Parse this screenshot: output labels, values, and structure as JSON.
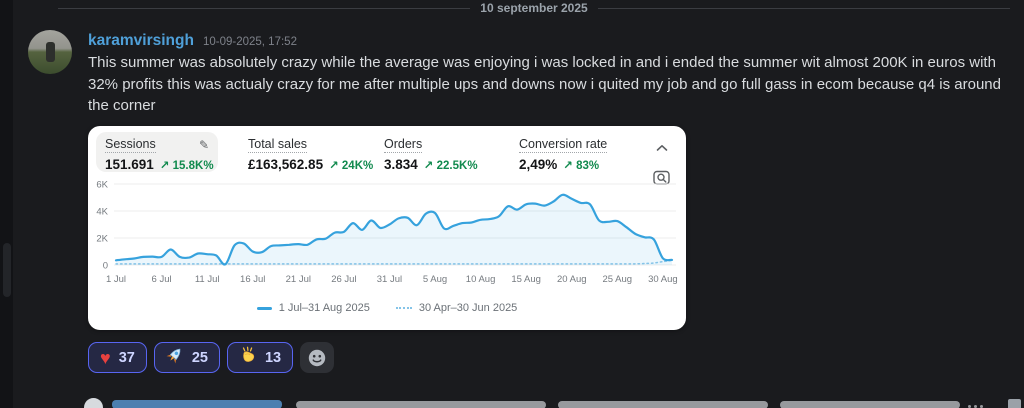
{
  "date_divider": "10 september 2025",
  "message": {
    "username": "karamvirsingh",
    "timestamp": "10-09-2025, 17:52",
    "text": "This summer was absolutely crazy while the average was enjoying i was locked in and i ended the summer wit almost 200K in euros with 32% profits this was actualy crazy for me after multiple ups and downs now i quited my job and go full gass in ecom because q4 is around the corner"
  },
  "dashboard": {
    "metrics": [
      {
        "label": "Sessions",
        "value": "151.691",
        "delta": "↗ 15.8K%",
        "selected": true
      },
      {
        "label": "Total sales",
        "value": "£163,562.85",
        "delta": "↗ 24K%",
        "selected": false
      },
      {
        "label": "Orders",
        "value": "3.834",
        "delta": "↗ 22.5K%",
        "selected": false
      },
      {
        "label": "Conversion rate",
        "value": "2,49%",
        "delta": "↗ 83%",
        "selected": false
      }
    ],
    "icons": {
      "edit": "✎",
      "chevron_up": "chevron-up",
      "zoom_chart": "magnifier-over-chart"
    }
  },
  "chart_data": {
    "type": "line",
    "title": "Sessions over time (area line chart)",
    "xlabel": "",
    "ylabel": "",
    "ylim": [
      0,
      6200
    ],
    "grid": true,
    "legend_position": "bottom",
    "y_ticks": [
      {
        "v": 0,
        "label": "0"
      },
      {
        "v": 2000,
        "label": "2K"
      },
      {
        "v": 4000,
        "label": "4K"
      },
      {
        "v": 6000,
        "label": "6K"
      }
    ],
    "x_ticks": [
      {
        "day": 0,
        "label": "1 Jul"
      },
      {
        "day": 5,
        "label": "6 Jul"
      },
      {
        "day": 10,
        "label": "11 Jul"
      },
      {
        "day": 15,
        "label": "16 Jul"
      },
      {
        "day": 20,
        "label": "21 Jul"
      },
      {
        "day": 25,
        "label": "26 Jul"
      },
      {
        "day": 30,
        "label": "31 Jul"
      },
      {
        "day": 35,
        "label": "5 Aug"
      },
      {
        "day": 40,
        "label": "10 Aug"
      },
      {
        "day": 45,
        "label": "15 Aug"
      },
      {
        "day": 50,
        "label": "20 Aug"
      },
      {
        "day": 55,
        "label": "25 Aug"
      },
      {
        "day": 60,
        "label": "30 Aug"
      }
    ],
    "series": [
      {
        "name": "1 Jul–31 Aug 2025",
        "style": "solid",
        "color": "#36a2dd",
        "fill": "rgba(54,162,221,0.10)",
        "values": [
          350,
          420,
          480,
          600,
          620,
          600,
          1150,
          600,
          550,
          850,
          800,
          700,
          50,
          1450,
          1600,
          1000,
          950,
          1400,
          1450,
          1500,
          1550,
          1500,
          1900,
          1950,
          2400,
          2450,
          3100,
          2600,
          3300,
          2750,
          3000,
          3450,
          3500,
          2950,
          3800,
          3850,
          2700,
          2900,
          3100,
          3150,
          3350,
          3400,
          3600,
          4350,
          4100,
          4500,
          4550,
          4400,
          4700,
          5200,
          4900,
          4600,
          4500,
          3300,
          3200,
          3250,
          2800,
          2300,
          2050,
          1900,
          500,
          380
        ]
      },
      {
        "name": "30 Apr–30 Jun 2025",
        "style": "dotted",
        "color": "#85c4e8",
        "values": [
          80,
          80,
          80,
          80,
          80,
          80,
          80,
          80,
          80,
          80,
          80,
          80,
          80,
          80,
          80,
          80,
          80,
          80,
          80,
          80,
          80,
          80,
          80,
          80,
          80,
          80,
          80,
          80,
          80,
          80,
          80,
          80,
          80,
          80,
          80,
          80,
          80,
          80,
          80,
          80,
          80,
          80,
          80,
          80,
          80,
          80,
          80,
          80,
          80,
          80,
          80,
          80,
          80,
          80,
          80,
          80,
          80,
          90,
          110,
          150,
          250,
          350
        ]
      }
    ]
  },
  "reactions": [
    {
      "emoji": "heart",
      "count": "37"
    },
    {
      "emoji": "rocket",
      "count": "25"
    },
    {
      "emoji": "clap",
      "count": "13"
    }
  ],
  "colors": {
    "background": "#1a1b1e",
    "card": "#ffffff",
    "accent_blue": "#36a2dd",
    "positive_green": "#118a4e",
    "username_blue": "#4fa0d9",
    "reaction_border": "#5865f2"
  }
}
